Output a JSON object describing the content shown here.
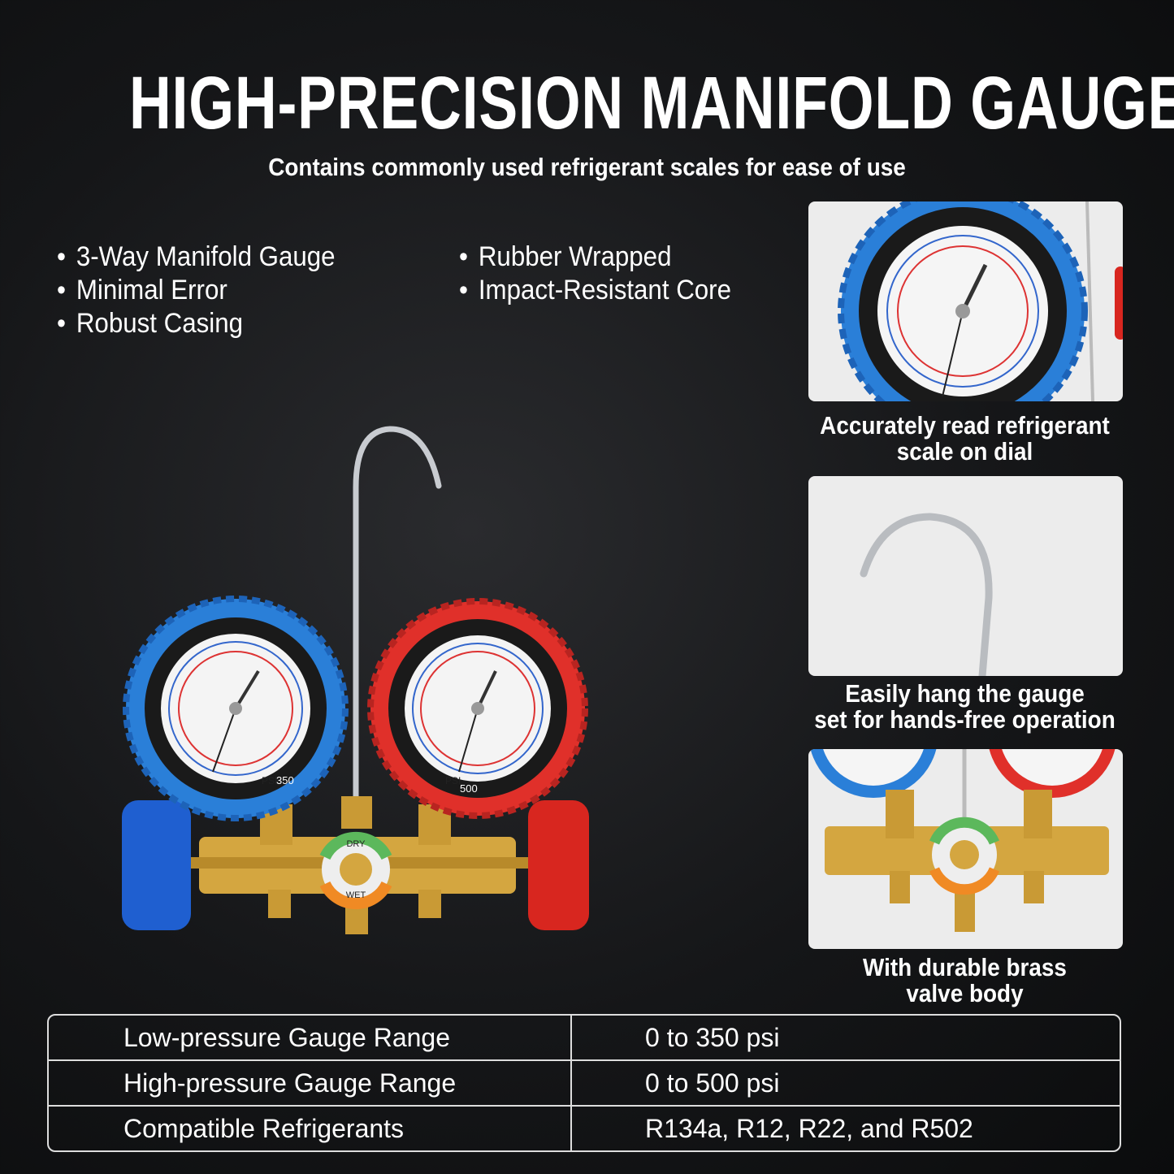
{
  "title": "HIGH-PRECISION MANIFOLD GAUGE",
  "subtitle": "Contains commonly used refrigerant scales for ease of use",
  "features_left": [
    "3-Way Manifold Gauge",
    "Minimal Error",
    "Robust  Casing"
  ],
  "features_right": [
    "Rubber Wrapped",
    "Impact-Resistant Core"
  ],
  "panels": [
    {
      "caption_line1": "Accurately read refrigerant",
      "caption_line2": "scale on dial"
    },
    {
      "caption_line1": "Easily hang the gauge",
      "caption_line2": "set for hands-free operation"
    },
    {
      "caption_line1": "With durable brass",
      "caption_line2": "valve body"
    }
  ],
  "gauge_labels": {
    "low_unit": "PSI",
    "low_max": "350",
    "high_unit": "PSI",
    "high_max": "500",
    "sight_top": "DRY",
    "sight_bottom": "WET"
  },
  "specs": [
    {
      "label": "Low-pressure Gauge Range",
      "value": "0 to 350 psi"
    },
    {
      "label": "High-pressure Gauge Range",
      "value": "0 to 500 psi"
    },
    {
      "label": "Compatible Refrigerants",
      "value": "R134a, R12, R22, and R502"
    }
  ],
  "colors": {
    "low_side": "#2a7fd8",
    "high_side": "#e0302a",
    "brass": "#d4a640",
    "background": "#151618"
  }
}
